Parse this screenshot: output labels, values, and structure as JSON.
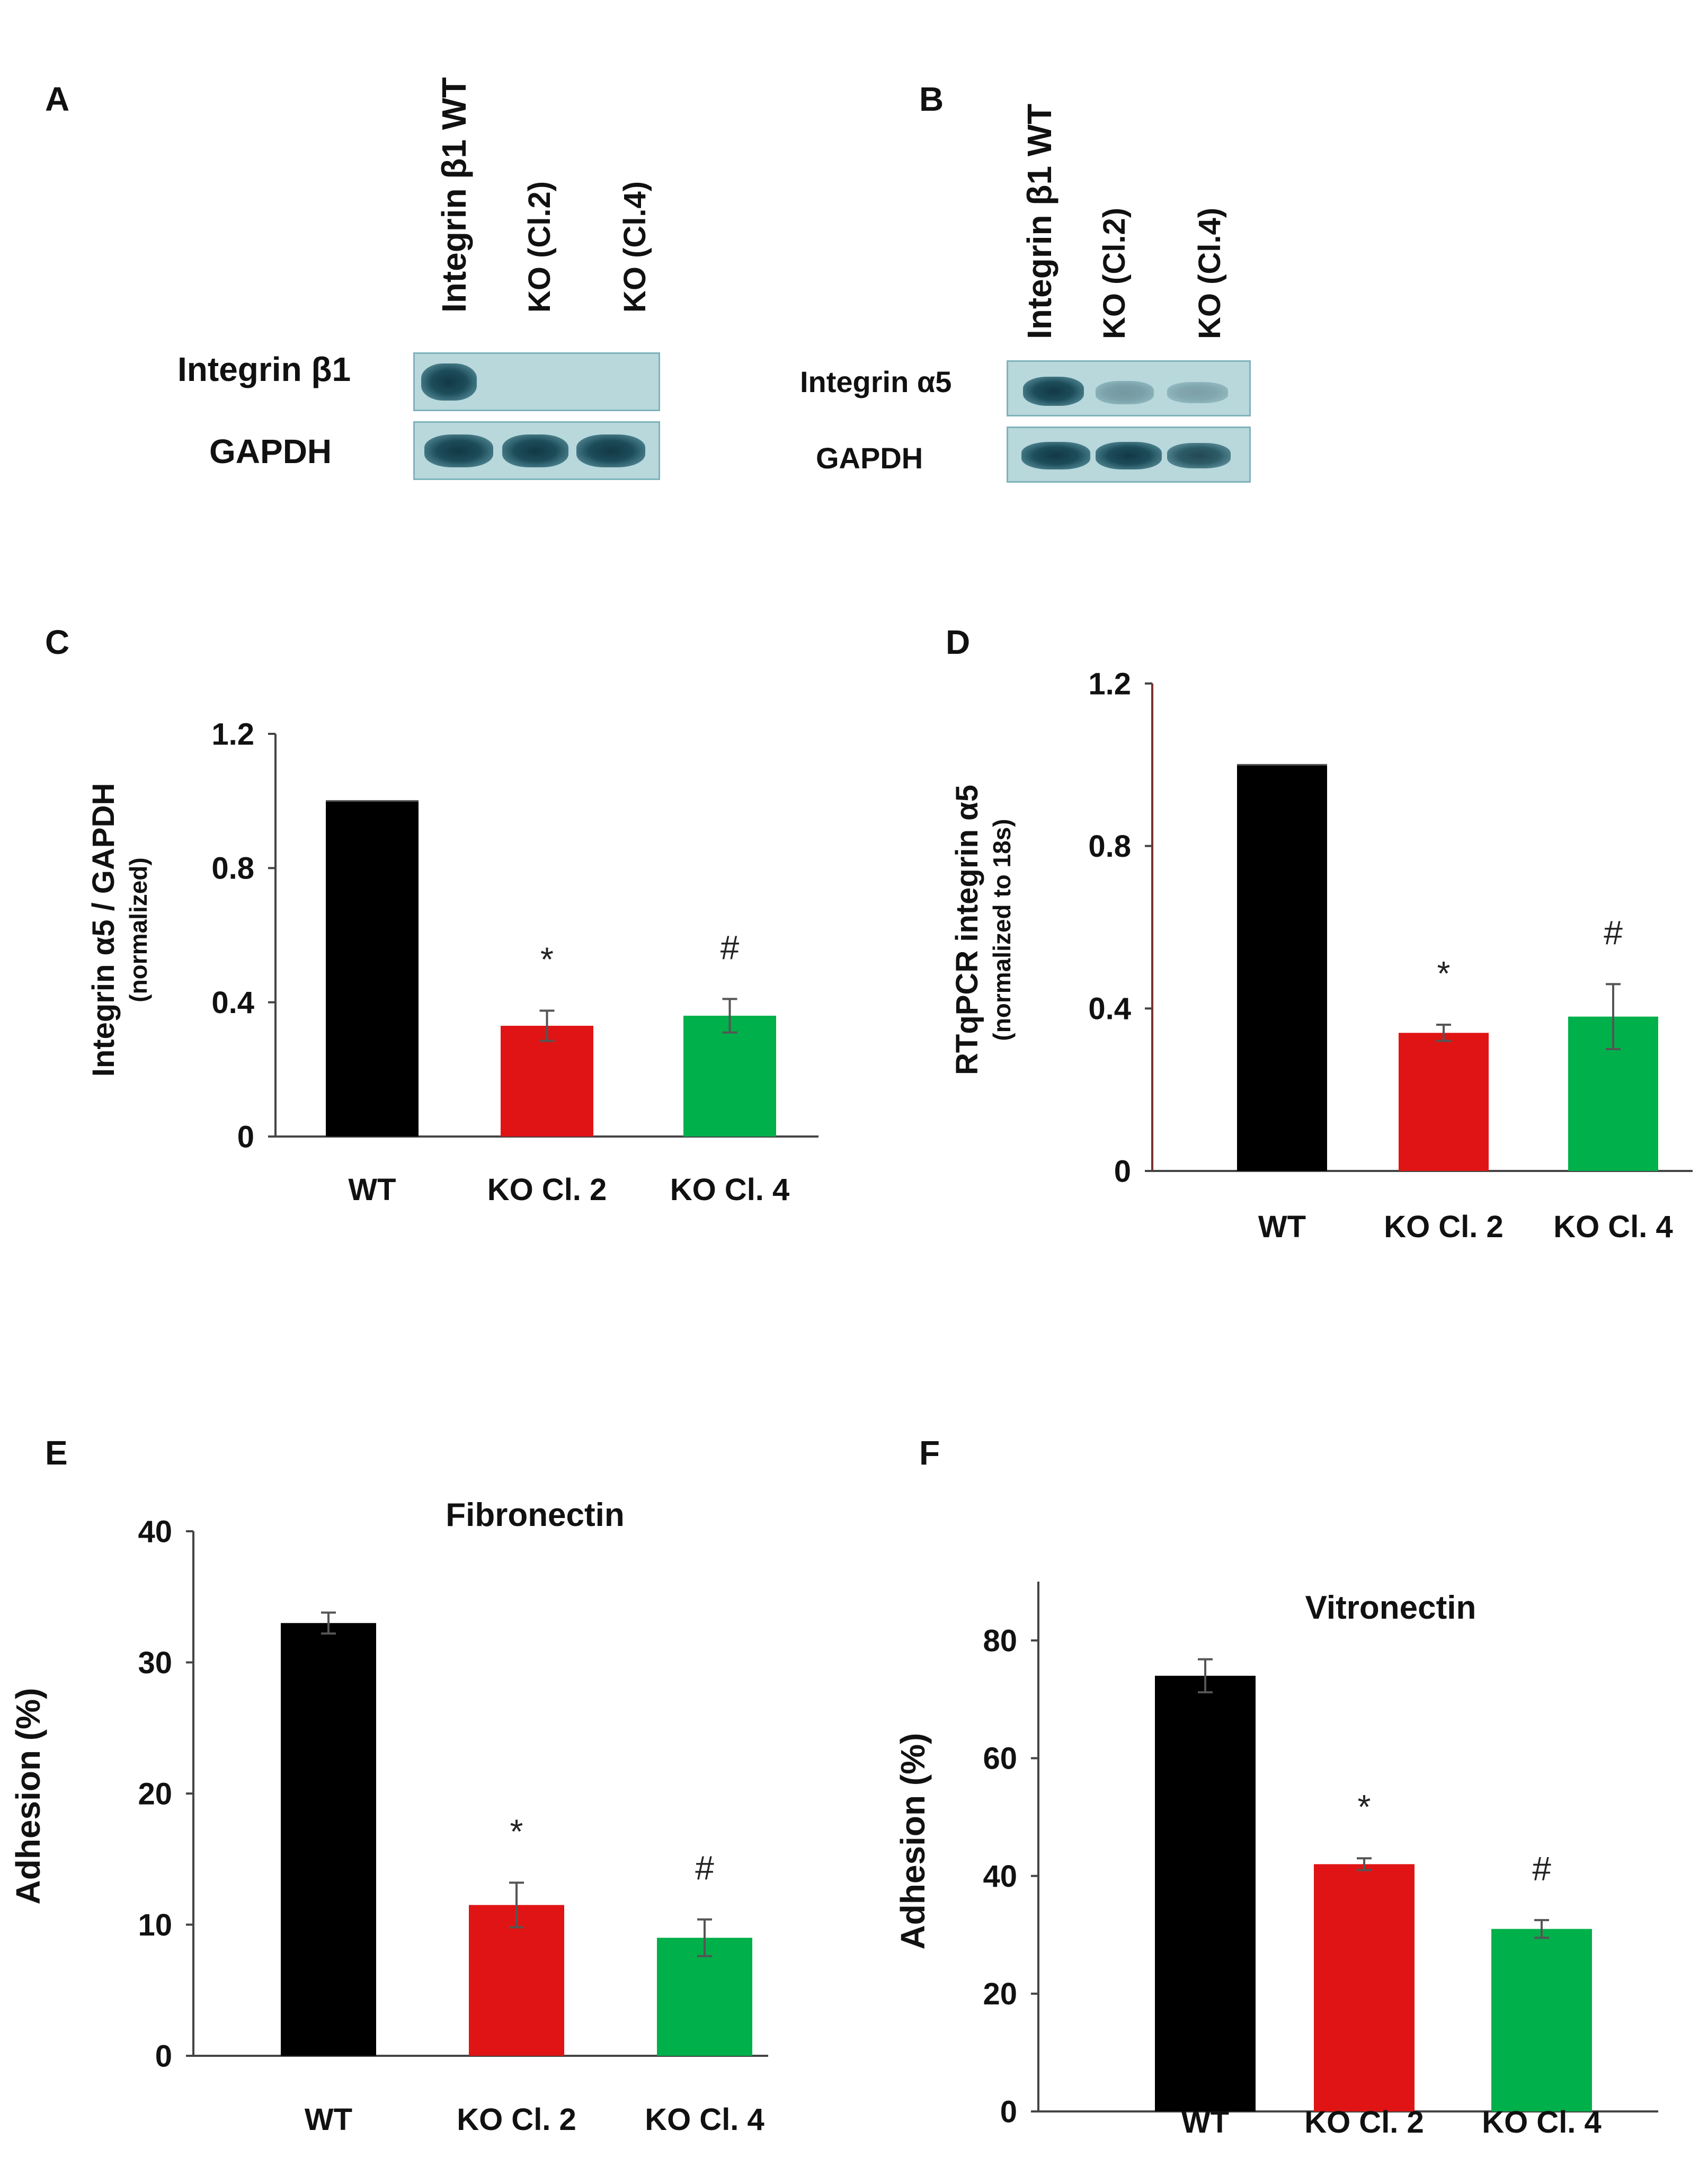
{
  "panels": {
    "A": {
      "letter": "A",
      "lanes": [
        "Integrin β1 WT",
        "KO (Cl.2)",
        "KO (Cl.4)"
      ],
      "rows": [
        "Integrin β1",
        "GAPDH"
      ],
      "band_intensity": [
        [
          1,
          0,
          0
        ],
        [
          1,
          1,
          1
        ]
      ]
    },
    "B": {
      "letter": "B",
      "lanes": [
        "Integrin β1 WT",
        "KO (Cl.2)",
        "KO (Cl.4)"
      ],
      "rows": [
        "Integrin α5",
        "GAPDH"
      ],
      "band_intensity": [
        [
          1,
          0.35,
          0.3
        ],
        [
          1,
          1,
          0.9
        ]
      ]
    },
    "C": {
      "letter": "C"
    },
    "D": {
      "letter": "D"
    },
    "E": {
      "letter": "E"
    },
    "F": {
      "letter": "F"
    }
  },
  "chart_data": [
    {
      "id": "C",
      "type": "bar",
      "title": "",
      "ylabel_main": "Integrin α5 / GAPDH",
      "ylabel_sub": "(normalized)",
      "categories": [
        "WT",
        "KO Cl. 2",
        "KO Cl. 4"
      ],
      "values": [
        1.0,
        0.33,
        0.36
      ],
      "errors": [
        0.0,
        0.045,
        0.05
      ],
      "annotations": [
        "",
        "*",
        "#"
      ],
      "colors": [
        "#000000",
        "#e01414",
        "#00b04a"
      ],
      "ylim": [
        0,
        1.2
      ],
      "yticks": [
        0,
        0.4,
        0.8,
        1.2
      ],
      "ytick_labels": [
        "0",
        "0.4",
        "0.8",
        "1.2"
      ]
    },
    {
      "id": "D",
      "type": "bar",
      "title": "",
      "ylabel_main": "RTqPCR integrin α5",
      "ylabel_sub": "(normalized to 18s)",
      "categories": [
        "WT",
        "KO Cl. 2",
        "KO Cl. 4"
      ],
      "values": [
        1.0,
        0.34,
        0.38
      ],
      "errors": [
        0.0,
        0.02,
        0.08
      ],
      "annotations": [
        "",
        "*",
        "#"
      ],
      "colors": [
        "#000000",
        "#e01414",
        "#00b04a"
      ],
      "ylim": [
        0,
        1.2
      ],
      "yticks": [
        0,
        0.4,
        0.8,
        1.2
      ],
      "ytick_labels": [
        "0",
        "0.4",
        "0.8",
        "1.2"
      ]
    },
    {
      "id": "E",
      "type": "bar",
      "title": "Fibronectin",
      "ylabel_main": "Adhesion (%)",
      "ylabel_sub": "",
      "categories": [
        "WT",
        "KO Cl. 2",
        "KO Cl. 4"
      ],
      "values": [
        33,
        11.5,
        9
      ],
      "errors": [
        0.8,
        1.7,
        1.4
      ],
      "annotations": [
        "",
        "*",
        "#"
      ],
      "colors": [
        "#000000",
        "#e01414",
        "#00b04a"
      ],
      "ylim": [
        0,
        40
      ],
      "yticks": [
        0,
        10,
        20,
        30,
        40
      ],
      "ytick_labels": [
        "0",
        "10",
        "20",
        "30",
        "40"
      ]
    },
    {
      "id": "F",
      "type": "bar",
      "title": "Vitronectin",
      "ylabel_main": "Adhesion (%)",
      "ylabel_sub": "",
      "categories": [
        "WT",
        "KO Cl. 2",
        "KO Cl. 4"
      ],
      "values": [
        74,
        42,
        31
      ],
      "errors": [
        2.8,
        1.0,
        1.5
      ],
      "annotations": [
        "",
        "*",
        "#"
      ],
      "colors": [
        "#000000",
        "#e01414",
        "#00b04a"
      ],
      "ylim": [
        0,
        90
      ],
      "yticks": [
        0,
        20,
        40,
        60,
        80
      ],
      "ytick_labels": [
        "0",
        "20",
        "40",
        "60",
        "80"
      ]
    }
  ]
}
